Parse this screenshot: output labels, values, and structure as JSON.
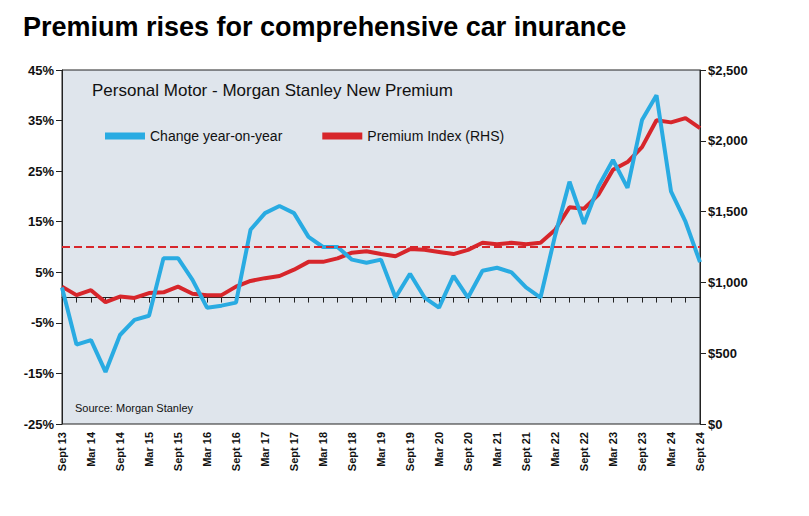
{
  "chart_data": {
    "type": "line",
    "title": "Premium rises for comprehensive car inurance",
    "subtitle": "Personal Motor - Morgan Stanley New Premium",
    "note": "Source: Morgan Stanley",
    "categories": [
      "Sept 13",
      null,
      "Mar 14",
      null,
      "Sept 14",
      null,
      "Mar 15",
      null,
      "Sept 15",
      null,
      "Mar 16",
      null,
      "Sept 16",
      null,
      "Mar 17",
      null,
      "Sept 17",
      null,
      "Mar 18",
      null,
      "Sept 18",
      null,
      "Mar 19",
      null,
      "Sept 19",
      null,
      "Mar 20",
      null,
      "Sept 20",
      null,
      "Mar 21",
      null,
      "Sept 21",
      null,
      "Mar 22",
      null,
      "Sept 22",
      null,
      "Mar 23",
      null,
      "Sept 23",
      null,
      "Mar 24",
      null,
      "Sept 24"
    ],
    "series": [
      {
        "name": "Change year-on-year",
        "color": "#29abe2",
        "line_style": "solid",
        "marker": "none",
        "values": [
          2,
          -9.3,
          -8.4,
          -14.7,
          -7.4,
          -4.4,
          -3.6,
          7.8,
          7.8,
          3.5,
          -2,
          -1.6,
          -1,
          13.4,
          16.7,
          18.1,
          16.7,
          12,
          10,
          10,
          7.5,
          6.9,
          7.5,
          0,
          4.7,
          0,
          -2,
          4.3,
          0,
          5.3,
          5.9,
          5,
          2,
          0,
          12.2,
          22.9,
          14.6,
          22,
          27.2,
          21.7,
          35.1,
          40,
          21,
          15,
          7
        ]
      },
      {
        "name": "Premium Index (RHS)",
        "color": "#d7262b",
        "line_style": "solid",
        "marker": "none",
        "axis": "y2",
        "values": [
          970,
          910,
          945,
          860,
          900,
          890,
          925,
          930,
          970,
          920,
          910,
          910,
          970,
          1010,
          1030,
          1045,
          1090,
          1145,
          1145,
          1170,
          1210,
          1220,
          1200,
          1185,
          1235,
          1230,
          1215,
          1200,
          1230,
          1280,
          1270,
          1280,
          1270,
          1280,
          1370,
          1530,
          1520,
          1620,
          1795,
          1850,
          1955,
          2145,
          2130,
          2160,
          2090
        ]
      }
    ],
    "ylim": [
      -25,
      45
    ],
    "yticks": [
      {
        "value": -25,
        "label": "-25%"
      },
      {
        "value": -15,
        "label": "-15%"
      },
      {
        "value": -5,
        "label": "-5%"
      },
      {
        "value": 5,
        "label": "5%"
      },
      {
        "value": 15,
        "label": "15%"
      },
      {
        "value": 25,
        "label": "25%"
      },
      {
        "value": 35,
        "label": "35%"
      },
      {
        "value": 45,
        "label": "45%"
      }
    ],
    "y2lim": [
      0,
      2500
    ],
    "y2ticks": [
      {
        "value": 0,
        "label": "$0"
      },
      {
        "value": 500,
        "label": "$500"
      },
      {
        "value": 1000,
        "label": "$1,000"
      },
      {
        "value": 1500,
        "label": "$1,500"
      },
      {
        "value": 2000,
        "label": "$2,000"
      },
      {
        "value": 2500,
        "label": "$2,500"
      }
    ],
    "reference_line": {
      "value": 10,
      "color": "#d7262b",
      "line_style": "dashed"
    },
    "grid": false,
    "legend": "upper left"
  }
}
